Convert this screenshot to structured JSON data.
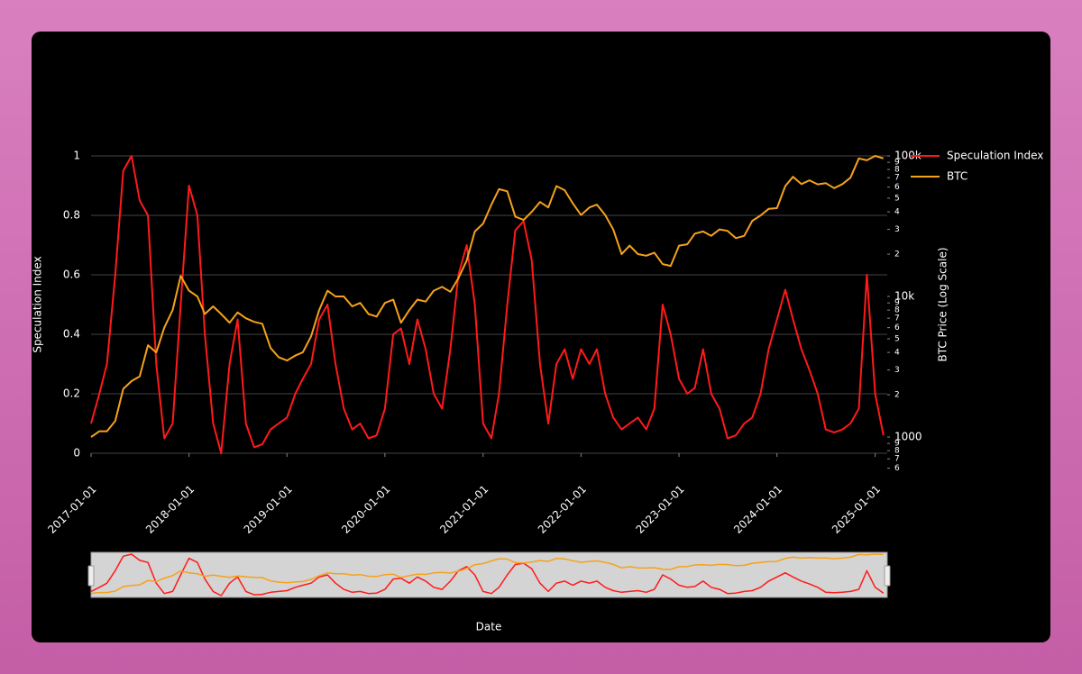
{
  "chart_data": {
    "type": "line",
    "x_label": "Date",
    "y_label": "Speculation Index",
    "y2_label": "BTC Price (Log Scale)",
    "x": [
      "2017-01-01",
      "2017-02-01",
      "2017-03-01",
      "2017-04-01",
      "2017-05-01",
      "2017-06-01",
      "2017-07-01",
      "2017-08-01",
      "2017-09-01",
      "2017-10-01",
      "2017-11-01",
      "2017-12-01",
      "2018-01-01",
      "2018-02-01",
      "2018-03-01",
      "2018-04-01",
      "2018-05-01",
      "2018-06-01",
      "2018-07-01",
      "2018-08-01",
      "2018-09-01",
      "2018-10-01",
      "2018-11-01",
      "2018-12-01",
      "2019-01-01",
      "2019-02-01",
      "2019-03-01",
      "2019-04-01",
      "2019-05-01",
      "2019-06-01",
      "2019-07-01",
      "2019-08-01",
      "2019-09-01",
      "2019-10-01",
      "2019-11-01",
      "2019-12-01",
      "2020-01-01",
      "2020-02-01",
      "2020-03-01",
      "2020-04-01",
      "2020-05-01",
      "2020-06-01",
      "2020-07-01",
      "2020-08-01",
      "2020-09-01",
      "2020-10-01",
      "2020-11-01",
      "2020-12-01",
      "2021-01-01",
      "2021-02-01",
      "2021-03-01",
      "2021-04-01",
      "2021-05-01",
      "2021-06-01",
      "2021-07-01",
      "2021-08-01",
      "2021-09-01",
      "2021-10-01",
      "2021-11-01",
      "2021-12-01",
      "2022-01-01",
      "2022-02-01",
      "2022-03-01",
      "2022-04-01",
      "2022-05-01",
      "2022-06-01",
      "2022-07-01",
      "2022-08-01",
      "2022-09-01",
      "2022-10-01",
      "2022-11-01",
      "2022-12-01",
      "2023-01-01",
      "2023-02-01",
      "2023-03-01",
      "2023-04-01",
      "2023-05-01",
      "2023-06-01",
      "2023-07-01",
      "2023-08-01",
      "2023-09-01",
      "2023-10-01",
      "2023-11-01",
      "2023-12-01",
      "2024-01-01",
      "2024-02-01",
      "2024-03-01",
      "2024-04-01",
      "2024-05-01",
      "2024-06-01",
      "2024-07-01",
      "2024-08-01",
      "2024-09-01",
      "2024-10-01",
      "2024-11-01",
      "2024-12-01",
      "2025-01-01",
      "2025-02-01"
    ],
    "series": [
      {
        "name": "Speculation Index",
        "color": "#ff1a1a",
        "values": [
          0.1,
          0.2,
          0.3,
          0.6,
          0.95,
          1.0,
          0.85,
          0.8,
          0.3,
          0.05,
          0.1,
          0.5,
          0.9,
          0.8,
          0.4,
          0.1,
          0.0,
          0.3,
          0.45,
          0.1,
          0.02,
          0.03,
          0.08,
          0.1,
          0.12,
          0.2,
          0.25,
          0.3,
          0.45,
          0.5,
          0.3,
          0.15,
          0.08,
          0.1,
          0.05,
          0.06,
          0.15,
          0.4,
          0.42,
          0.3,
          0.45,
          0.35,
          0.2,
          0.15,
          0.35,
          0.6,
          0.7,
          0.5,
          0.1,
          0.05,
          0.2,
          0.5,
          0.75,
          0.78,
          0.65,
          0.3,
          0.1,
          0.3,
          0.35,
          0.25,
          0.35,
          0.3,
          0.35,
          0.2,
          0.12,
          0.08,
          0.1,
          0.12,
          0.08,
          0.15,
          0.5,
          0.4,
          0.25,
          0.2,
          0.22,
          0.35,
          0.2,
          0.15,
          0.05,
          0.06,
          0.1,
          0.12,
          0.2,
          0.35,
          0.45,
          0.55,
          0.45,
          0.35,
          0.28,
          0.2,
          0.08,
          0.07,
          0.08,
          0.1,
          0.15,
          0.6,
          0.2,
          0.06
        ]
      },
      {
        "name": "BTC",
        "color": "#f5a21b",
        "axis": "y2",
        "values": [
          1000,
          1100,
          1100,
          1300,
          2200,
          2500,
          2700,
          4500,
          4000,
          6000,
          8000,
          14000,
          11000,
          10000,
          7500,
          8500,
          7500,
          6500,
          7700,
          7000,
          6600,
          6400,
          4300,
          3700,
          3500,
          3800,
          4000,
          5200,
          8000,
          11000,
          10000,
          10000,
          8500,
          9000,
          7500,
          7200,
          9000,
          9500,
          6500,
          8000,
          9500,
          9200,
          11000,
          11700,
          10800,
          13500,
          18000,
          29000,
          33000,
          45000,
          58000,
          56000,
          37000,
          35000,
          40000,
          47000,
          43000,
          61000,
          57000,
          46000,
          38000,
          43000,
          45000,
          38000,
          30000,
          20000,
          23000,
          20000,
          19500,
          20500,
          17000,
          16500,
          23000,
          23500,
          28000,
          29000,
          27000,
          30000,
          29300,
          26000,
          27000,
          34500,
          37700,
          42000,
          42500,
          61000,
          71000,
          63000,
          67000,
          62700,
          64000,
          59000,
          63000,
          70000,
          96000,
          93000,
          100000,
          96000
        ]
      }
    ],
    "xlim": [
      "2017-01-01",
      "2025-02-15"
    ],
    "xticks": [
      "2017-01-01",
      "2018-01-01",
      "2019-01-01",
      "2020-01-01",
      "2021-01-01",
      "2022-01-01",
      "2023-01-01",
      "2024-01-01",
      "2025-01-01"
    ],
    "ylim": [
      0,
      1
    ],
    "yticks": [
      0,
      0.2,
      0.4,
      0.6,
      0.8,
      1
    ],
    "y2lim": [
      767,
      100000
    ],
    "y2_log": true,
    "y2ticks": [
      {
        "value": 600,
        "label": "6"
      },
      {
        "value": 700,
        "label": "7"
      },
      {
        "value": 800,
        "label": "8"
      },
      {
        "value": 900,
        "label": "9"
      },
      1000,
      {
        "value": 2000,
        "label": "2"
      },
      {
        "value": 3000,
        "label": "3"
      },
      {
        "value": 4000,
        "label": "4"
      },
      {
        "value": 5000,
        "label": "5"
      },
      {
        "value": 6000,
        "label": "6"
      },
      {
        "value": 7000,
        "label": "7"
      },
      {
        "value": 8000,
        "label": "8"
      },
      {
        "value": 9000,
        "label": "9"
      },
      {
        "value": 10000,
        "label": "10k"
      },
      {
        "value": 20000,
        "label": "2"
      },
      {
        "value": 30000,
        "label": "3"
      },
      {
        "value": 40000,
        "label": "4"
      },
      {
        "value": 50000,
        "label": "5"
      },
      {
        "value": 60000,
        "label": "6"
      },
      {
        "value": 70000,
        "label": "7"
      },
      {
        "value": 80000,
        "label": "8"
      },
      {
        "value": 90000,
        "label": "9"
      },
      {
        "value": 100000,
        "label": "100k"
      }
    ],
    "grid": true,
    "legend": "right",
    "range_slider": true
  }
}
